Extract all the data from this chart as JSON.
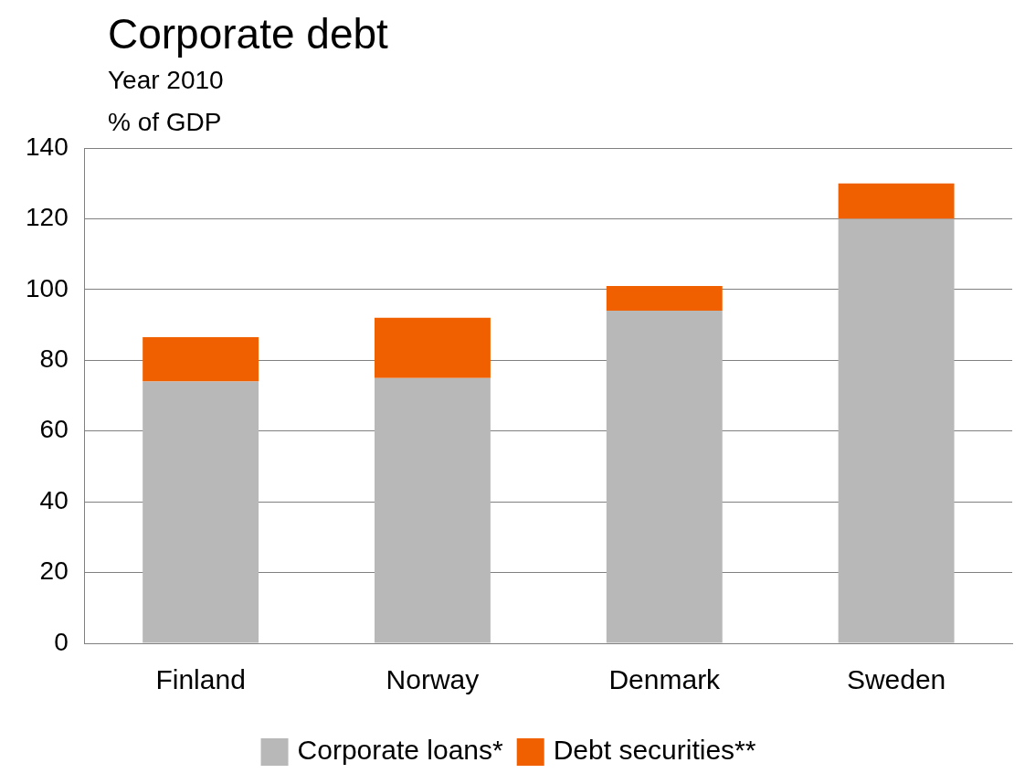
{
  "chart_data": {
    "type": "bar",
    "title": "Corporate debt",
    "subtitle": "Year 2010",
    "ylabel": "% of GDP",
    "stacked": true,
    "categories": [
      "Finland",
      "Norway",
      "Denmark",
      "Sweden"
    ],
    "series": [
      {
        "name": "Corporate loans*",
        "color": "#b8b8b8",
        "values": [
          74,
          75,
          94,
          120
        ]
      },
      {
        "name": "Debt securities**",
        "color": "#f06000",
        "values": [
          12.5,
          17,
          7,
          10
        ]
      }
    ],
    "ylim": [
      0,
      140
    ],
    "yticks": [
      0,
      20,
      40,
      60,
      80,
      100,
      120,
      140
    ],
    "grid": "y",
    "legend": "bottom"
  }
}
